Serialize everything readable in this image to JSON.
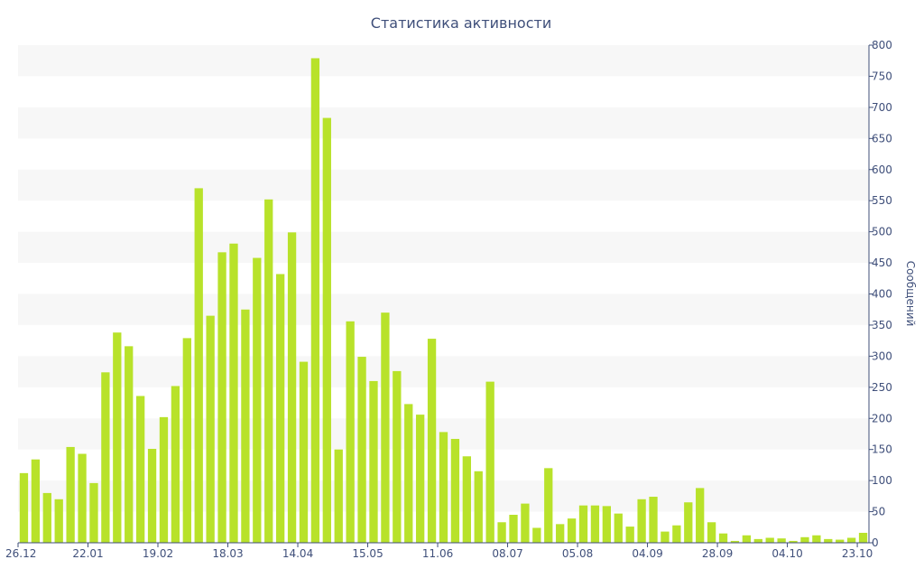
{
  "chart_data": {
    "type": "bar",
    "title": "Статистика активности",
    "xlabel": "",
    "ylabel": "Сообщений",
    "ylim": [
      0,
      800
    ],
    "y_ticks": [
      0,
      50,
      100,
      150,
      200,
      250,
      300,
      350,
      400,
      450,
      500,
      550,
      600,
      650,
      700,
      750,
      800
    ],
    "y_axis_position": "right",
    "grid": "alternating horizontal bands",
    "bar_color": "#b8e22a",
    "band_color": "#f7f7f7",
    "axis_color": "#3f4f7a",
    "x_tick_labels": [
      {
        "label": "26.12",
        "index": 0
      },
      {
        "label": "22.01",
        "index": 6
      },
      {
        "label": "19.02",
        "index": 12
      },
      {
        "label": "18.03",
        "index": 18
      },
      {
        "label": "14.04",
        "index": 24
      },
      {
        "label": "15.05",
        "index": 30
      },
      {
        "label": "11.06",
        "index": 36
      },
      {
        "label": "08.07",
        "index": 42
      },
      {
        "label": "05.08",
        "index": 48
      },
      {
        "label": "04.09",
        "index": 54
      },
      {
        "label": "28.09",
        "index": 60
      },
      {
        "label": "04.10",
        "index": 66
      },
      {
        "label": "23.10",
        "index": 72
      }
    ],
    "values": [
      112,
      134,
      80,
      70,
      154,
      143,
      96,
      274,
      338,
      316,
      236,
      151,
      202,
      252,
      329,
      570,
      365,
      467,
      481,
      375,
      458,
      552,
      432,
      499,
      291,
      779,
      683,
      150,
      356,
      299,
      260,
      370,
      276,
      223,
      206,
      328,
      178,
      167,
      139,
      115,
      259,
      33,
      45,
      63,
      24,
      120,
      30,
      39,
      60,
      60,
      59,
      47,
      26,
      70,
      74,
      18,
      28,
      65,
      88,
      33,
      15,
      3,
      12,
      6,
      8,
      7,
      3,
      9,
      12,
      6,
      5,
      8,
      16
    ]
  }
}
